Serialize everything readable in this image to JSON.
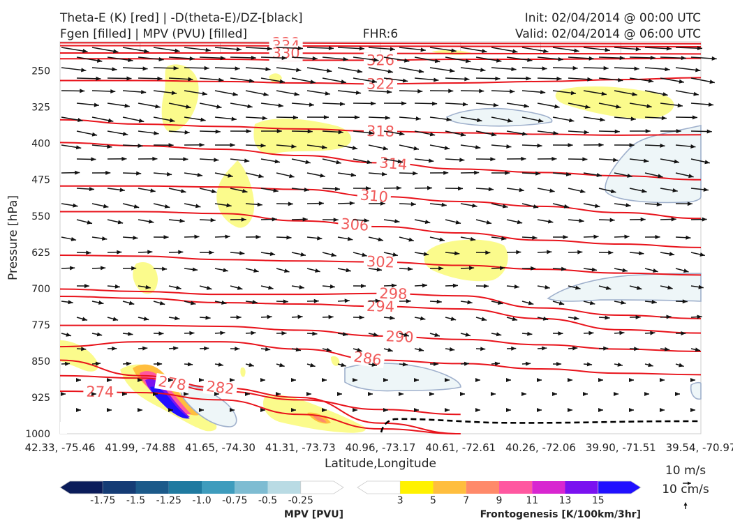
{
  "header": {
    "title_left_1": "Theta-E (K) [red] | -D(theta-E)/DZ-[black]",
    "title_left_2": "Fgen [filled] | MPV (PVU) [filled]",
    "fhr": "FHR:6",
    "init": "Init: 02/04/2014 @ 00:00 UTC",
    "valid": "Valid: 02/04/2014 @ 06:00 UTC"
  },
  "colors": {
    "theta_e": "#e8131b",
    "contour_label": "#f05a5a",
    "arrow": "#111111",
    "fgen_fill": "#fbfb8c",
    "mpv_fill": "#eef6f8",
    "mpv_line": "#9fb0cc"
  },
  "chart_data": {
    "type": "cross-section",
    "xlabel": "Latitude,Longitude",
    "ylabel": "Pressure [hPa]",
    "x_ticks": [
      "42.33, -75.46",
      "41.99, -74.88",
      "41.65, -74.30",
      "41.31, -73.73",
      "40.96, -73.17",
      "40.61, -72.61",
      "40.26, -72.06",
      "39.90, -71.51",
      "39.54, -70.97"
    ],
    "y_ticks": [
      250,
      325,
      400,
      475,
      550,
      625,
      700,
      775,
      850,
      925,
      1000
    ],
    "ylim": [
      1000,
      190
    ],
    "y_inverted": true,
    "theta_e_contours": [
      {
        "level": 338,
        "label": "338",
        "points": [
          [
            0,
            192
          ],
          [
            2,
            192
          ],
          [
            4,
            193
          ],
          [
            8,
            194
          ]
        ]
      },
      {
        "level": 334,
        "label": "334",
        "points": [
          [
            0,
            198
          ],
          [
            2,
            198
          ],
          [
            4,
            199
          ],
          [
            8,
            200
          ]
        ]
      },
      {
        "level": 330,
        "label": "330",
        "points": [
          [
            0,
            213
          ],
          [
            2,
            213
          ],
          [
            4,
            214
          ],
          [
            8,
            215
          ]
        ]
      },
      {
        "level": 326,
        "label": "326",
        "points": [
          [
            0,
            225
          ],
          [
            1,
            225
          ],
          [
            2,
            226
          ],
          [
            3,
            228
          ],
          [
            4,
            228
          ],
          [
            5,
            226
          ],
          [
            6,
            226
          ],
          [
            7,
            225
          ],
          [
            8,
            224
          ]
        ]
      },
      {
        "level": 322,
        "label": "322",
        "points": [
          [
            0,
            270
          ],
          [
            1,
            270
          ],
          [
            2,
            272
          ],
          [
            3,
            275
          ],
          [
            4,
            277
          ],
          [
            5,
            275
          ],
          [
            6,
            272
          ],
          [
            7,
            268
          ],
          [
            8,
            264
          ]
        ]
      },
      {
        "level": 318,
        "label": "318",
        "points": [
          [
            0,
            351
          ],
          [
            1,
            360
          ],
          [
            2,
            365
          ],
          [
            3,
            370
          ],
          [
            4,
            375
          ],
          [
            5,
            378
          ],
          [
            6,
            381
          ],
          [
            7,
            383
          ],
          [
            8,
            382
          ]
        ]
      },
      {
        "level": 314,
        "label": "314",
        "points": [
          [
            0,
            398
          ],
          [
            1,
            405
          ],
          [
            2,
            412
          ],
          [
            3,
            425
          ],
          [
            4,
            440
          ],
          [
            5,
            453
          ],
          [
            6,
            460
          ],
          [
            7,
            467
          ],
          [
            8,
            475
          ]
        ]
      },
      {
        "level": 310,
        "label": "310",
        "points": [
          [
            0,
            488
          ],
          [
            1,
            488
          ],
          [
            2,
            490
          ],
          [
            3,
            495
          ],
          [
            4,
            510
          ],
          [
            5,
            520
          ],
          [
            6,
            530
          ],
          [
            7,
            543
          ],
          [
            8,
            555
          ]
        ]
      },
      {
        "level": 306,
        "label": "306",
        "points": [
          [
            0,
            541
          ],
          [
            1,
            541
          ],
          [
            2,
            545
          ],
          [
            3,
            560
          ],
          [
            4,
            572
          ],
          [
            5,
            585
          ],
          [
            6,
            600
          ],
          [
            7,
            608
          ],
          [
            8,
            615
          ]
        ]
      },
      {
        "level": 302,
        "label": "302",
        "points": [
          [
            0,
            631
          ],
          [
            1,
            633
          ],
          [
            2,
            640
          ],
          [
            3,
            643
          ],
          [
            4,
            645
          ],
          [
            5,
            652
          ],
          [
            6,
            660
          ],
          [
            7,
            668
          ],
          [
            8,
            672
          ]
        ]
      },
      {
        "level": 298,
        "label": "298",
        "points": [
          [
            0,
            701
          ],
          [
            1,
            706
          ],
          [
            2,
            712
          ],
          [
            3,
            712
          ],
          [
            4,
            710
          ],
          [
            5,
            715
          ],
          [
            6,
            740
          ],
          [
            7,
            755
          ],
          [
            8,
            762
          ]
        ]
      },
      {
        "level": 294,
        "label": "294",
        "points": [
          [
            0,
            716
          ],
          [
            1,
            720
          ],
          [
            2,
            729
          ],
          [
            3,
            732
          ],
          [
            4,
            737
          ],
          [
            5,
            742
          ],
          [
            6,
            762
          ],
          [
            7,
            785
          ],
          [
            8,
            792
          ]
        ]
      },
      {
        "level": 290,
        "label": "290",
        "points": [
          [
            0,
            776
          ],
          [
            1,
            776
          ],
          [
            2,
            778
          ],
          [
            3,
            786
          ],
          [
            4,
            798
          ],
          [
            5,
            805
          ],
          [
            6,
            816
          ],
          [
            7,
            825
          ],
          [
            8,
            830
          ]
        ]
      },
      {
        "level": 286,
        "label": "286",
        "points": [
          [
            0,
            820
          ],
          [
            1,
            810
          ],
          [
            2,
            810
          ],
          [
            3,
            825
          ],
          [
            4,
            848
          ],
          [
            5,
            855
          ],
          [
            6,
            866
          ],
          [
            7,
            875
          ],
          [
            8,
            878
          ]
        ]
      },
      {
        "level": 282,
        "label": "282",
        "points": [
          [
            0,
            848
          ],
          [
            1,
            880
          ],
          [
            2,
            905
          ],
          [
            3,
            925
          ],
          [
            4,
            978
          ],
          [
            5,
            1000
          ]
        ]
      },
      {
        "level": 278,
        "label": "278",
        "points": [
          [
            0,
            880
          ],
          [
            1,
            885
          ],
          [
            2,
            912
          ],
          [
            3,
            930
          ],
          [
            4,
            950
          ],
          [
            5,
            960
          ]
        ]
      },
      {
        "level": 274,
        "label": "274",
        "points": [
          [
            0,
            912
          ],
          [
            1,
            915
          ],
          [
            2,
            930
          ],
          [
            3,
            960
          ],
          [
            4,
            990
          ],
          [
            5,
            1000
          ]
        ]
      }
    ]
  },
  "colorbars": {
    "mpv": {
      "label": "MPV [PVU]",
      "ticks": [
        "-1.75",
        "-1.5",
        "-1.25",
        "-1.0",
        "-0.75",
        "-0.5",
        "-0.25"
      ],
      "colors": [
        "#0b1c5a",
        "#153c75",
        "#1c5a8a",
        "#1f7aa0",
        "#3e9cbd",
        "#7ebcd2",
        "#b9dbe4",
        "#ffffff"
      ]
    },
    "fgen": {
      "label": "Frontogenesis [K/100km/3hr]",
      "ticks": [
        "3",
        "5",
        "7",
        "9",
        "11",
        "13",
        "15"
      ],
      "colors": [
        "#ffffff",
        "#fff200",
        "#ffbe3e",
        "#ff8a6a",
        "#ff58a0",
        "#d826d0",
        "#7a12f0",
        "#2010ff"
      ]
    }
  },
  "wind_key": {
    "u": "10 m/s",
    "w": "10 cm/s"
  }
}
